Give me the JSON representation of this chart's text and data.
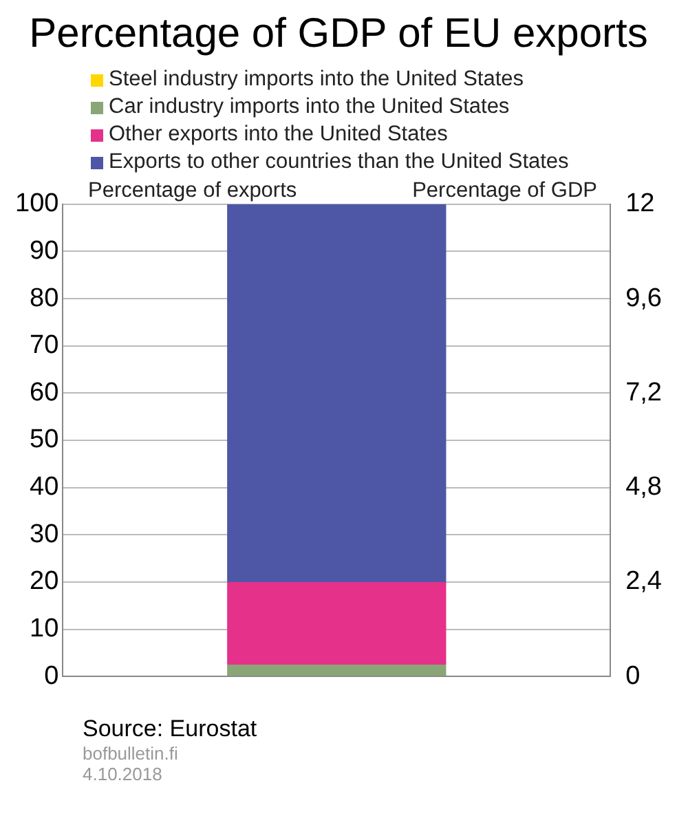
{
  "chart_data": {
    "type": "bar",
    "title": "Percentage of GDP of EU exports",
    "categories": [
      null
    ],
    "stacked": true,
    "series": [
      {
        "name": "Steel industry imports into the United States",
        "color": "#ffd700",
        "values": [
          0
        ]
      },
      {
        "name": "Car industry imports into the United States",
        "color": "#8aa676",
        "values": [
          2.5
        ]
      },
      {
        "name": "Other exports into the United States",
        "color": "#e5318a",
        "values": [
          17.5
        ]
      },
      {
        "name": "Exports to other countries than the United States",
        "color": "#4d57a5",
        "values": [
          80
        ]
      }
    ],
    "ylabel": "Percentage of exports",
    "y2label": "Percentage of GDP",
    "ylim": [
      0,
      100
    ],
    "yticks": [
      0,
      10,
      20,
      30,
      40,
      50,
      60,
      70,
      80,
      90,
      100
    ],
    "y2lim": [
      0,
      12
    ],
    "y2ticks": [
      0,
      {
        "value": 2.4,
        "label": "2,4"
      },
      {
        "value": 4.8,
        "label": "4,8"
      },
      {
        "value": 7.2,
        "label": "7,2"
      },
      {
        "value": 9.6,
        "label": "9,6"
      },
      12
    ],
    "grid": "y",
    "legend": "top",
    "annotations": [
      "Source: Eurostat",
      "bofbulletin.fi",
      "4.10.2018"
    ]
  }
}
